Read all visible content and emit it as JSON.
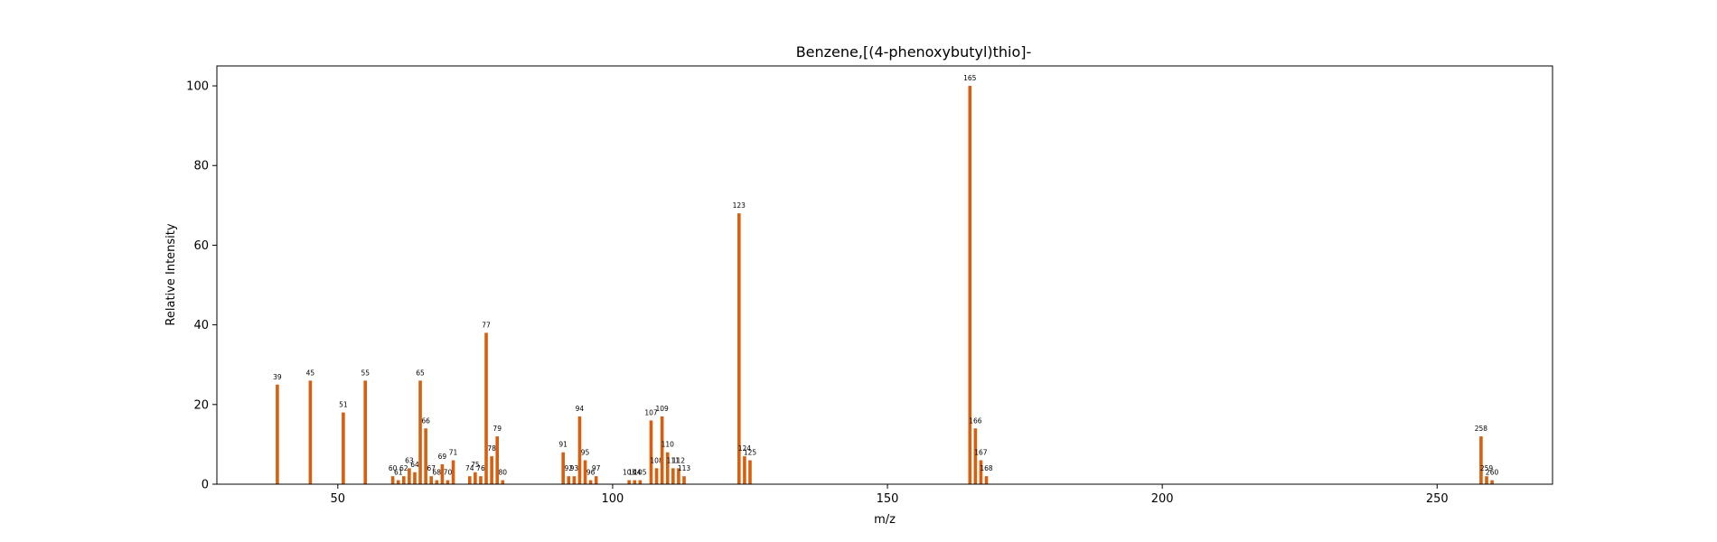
{
  "chart_data": {
    "type": "bar",
    "title": "Benzene,[(4-phenoxybutyl)thio]-",
    "xlabel": "m/z",
    "ylabel": "Relative Intensity",
    "xlim": [
      28,
      271
    ],
    "ylim": [
      0,
      105
    ],
    "xticks": [
      50,
      100,
      150,
      200,
      250
    ],
    "yticks": [
      0,
      20,
      40,
      60,
      80,
      100
    ],
    "grid": false,
    "bar_color": "#d95f0e",
    "series": [
      {
        "x": [
          39,
          45,
          51,
          55,
          60,
          61,
          62,
          63,
          64,
          65,
          66,
          67,
          68,
          69,
          70,
          71,
          74,
          75,
          76,
          77,
          78,
          79,
          80,
          91,
          92,
          93,
          94,
          95,
          96,
          97,
          103,
          104,
          105,
          107,
          108,
          109,
          110,
          111,
          112,
          113,
          123,
          124,
          125,
          165,
          166,
          167,
          168,
          258,
          259,
          260
        ],
        "values": [
          25,
          26,
          18,
          26,
          2,
          1,
          2,
          4,
          3,
          26,
          14,
          2,
          1,
          5,
          1,
          6,
          2,
          3,
          2,
          38,
          7,
          12,
          1,
          8,
          2,
          2,
          17,
          6,
          1,
          2,
          1,
          1,
          1,
          16,
          4,
          17,
          8,
          4,
          4,
          2,
          68,
          7,
          6,
          100,
          14,
          6,
          2,
          12,
          2,
          1
        ]
      }
    ]
  }
}
